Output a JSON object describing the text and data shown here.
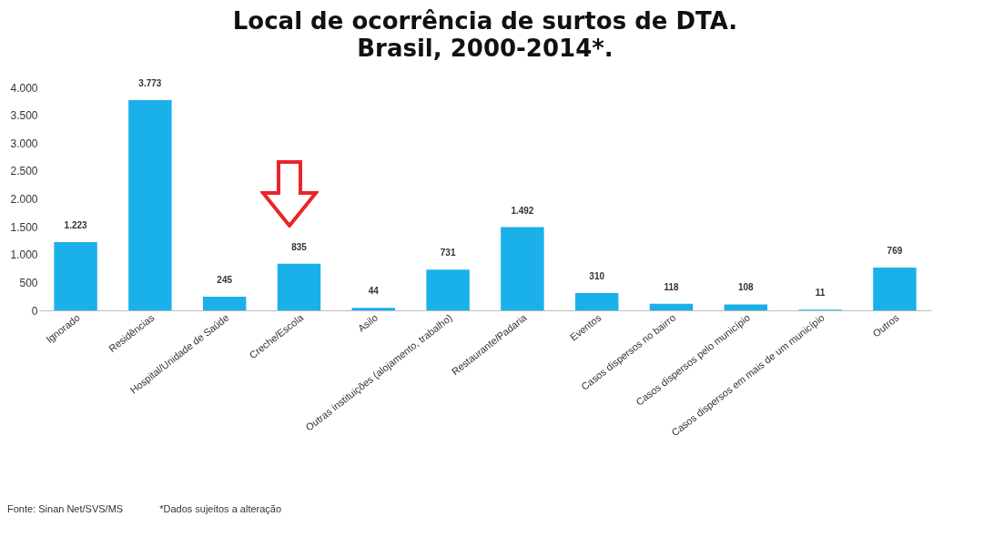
{
  "chart_data": {
    "type": "bar",
    "title": "Local de ocorrência de surtos de DTA.",
    "subtitle": "Brasil, 2000-2014*.",
    "categories": [
      "Ignorado",
      "Residências",
      "Hospital/Unidade de Saúde",
      "Creche/Escola",
      "Asilo",
      "Outras instituições (alojamento, trabalho)",
      "Restaurante/Padaria",
      "Eventos",
      "Casos dispersos no bairro",
      "Casos dispersos pelo município",
      "Casos dispersos em mais de um município",
      "Outros"
    ],
    "values": [
      1223,
      3773,
      245,
      835,
      44,
      731,
      1492,
      310,
      118,
      108,
      11,
      769
    ],
    "value_labels": [
      "1.223",
      "3.773",
      "245",
      "835",
      "44",
      "731",
      "1.492",
      "310",
      "118",
      "108",
      "11",
      "769"
    ],
    "color": "#1ab0ea",
    "ylim": [
      0,
      4000
    ],
    "yticks": [
      {
        "value": 0,
        "label": "0"
      },
      {
        "value": 500,
        "label": "500"
      },
      {
        "value": 1000,
        "label": "1.000"
      },
      {
        "value": 1500,
        "label": "1.500"
      },
      {
        "value": 2000,
        "label": "2.000"
      },
      {
        "value": 2500,
        "label": "2.500"
      },
      {
        "value": 3000,
        "label": "3.000"
      },
      {
        "value": 3500,
        "label": "3.500"
      },
      {
        "value": 4000,
        "label": "4.000"
      }
    ],
    "grid": false,
    "annotations": [
      "Fonte: Sinan Net/SVS/MS",
      "*Dados sujeitos a alteração"
    ]
  }
}
